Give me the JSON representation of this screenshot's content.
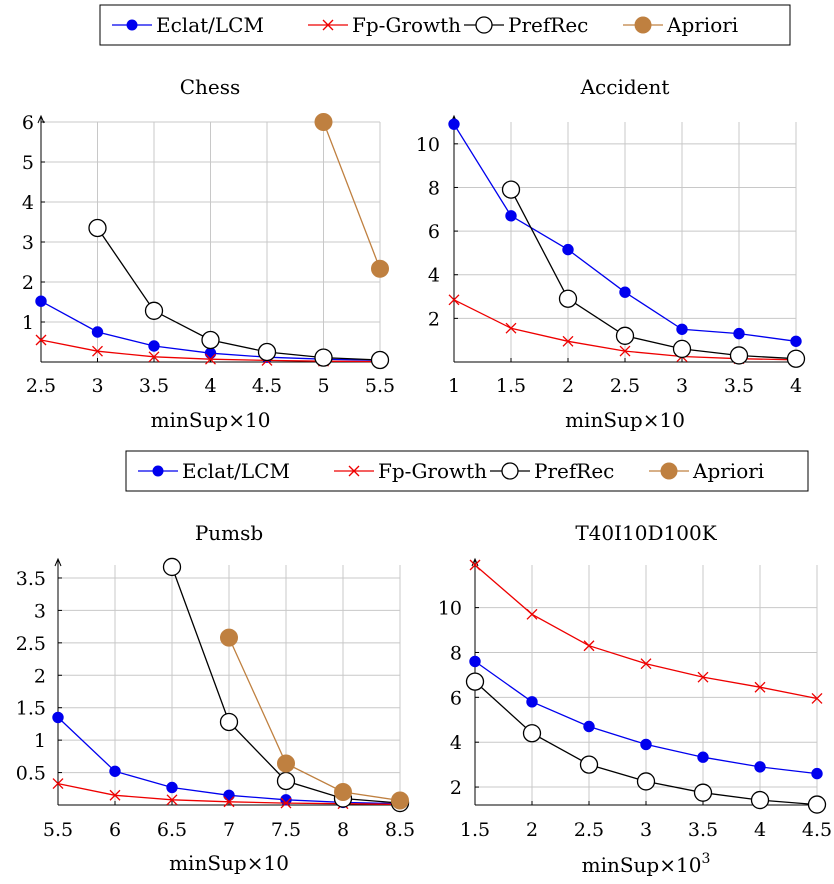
{
  "legend": {
    "entries": [
      {
        "name": "Eclat/LCM",
        "color": "#0000ee",
        "marker": "filled-circle"
      },
      {
        "name": "Fp-Growth",
        "color": "#ee0000",
        "marker": "cross"
      },
      {
        "name": "PrefRec",
        "color": "#000000",
        "marker": "open-circle"
      },
      {
        "name": "Apriori",
        "color": "#bf8040",
        "marker": "filled-circle"
      }
    ]
  },
  "chart_data": [
    {
      "type": "line",
      "title": "Chess",
      "xlabel": "minSup×10",
      "ylabel": "",
      "xlim": [
        2.5,
        5.5
      ],
      "ylim": [
        0,
        6
      ],
      "xticks": [
        "2.5",
        "3",
        "3.5",
        "4",
        "4.5",
        "5",
        "5.5"
      ],
      "yticks": [
        "1",
        "2",
        "3",
        "4",
        "5",
        "6"
      ],
      "grid": true,
      "series": [
        {
          "name": "Eclat/LCM",
          "x": [
            2.5,
            3,
            3.5,
            4,
            4.5,
            5,
            5.5
          ],
          "y": [
            1.52,
            0.75,
            0.4,
            0.22,
            0.12,
            0.07,
            0.04
          ]
        },
        {
          "name": "Fp-Growth",
          "x": [
            2.5,
            3,
            3.5,
            4,
            4.5,
            5,
            5.5
          ],
          "y": [
            0.55,
            0.27,
            0.13,
            0.07,
            0.04,
            0.02,
            0.01
          ]
        },
        {
          "name": "PrefRec",
          "x": [
            3,
            3.5,
            4,
            4.5,
            5,
            5.5
          ],
          "y": [
            3.35,
            1.28,
            0.55,
            0.25,
            0.11,
            0.05
          ]
        },
        {
          "name": "Apriori",
          "x": [
            5,
            5.5
          ],
          "y": [
            6.0,
            2.33
          ]
        }
      ]
    },
    {
      "type": "line",
      "title": "Accident",
      "xlabel": "minSup×10",
      "ylabel": "",
      "xlim": [
        1,
        4
      ],
      "ylim": [
        0,
        11
      ],
      "xticks": [
        "1",
        "1.5",
        "2",
        "2.5",
        "3",
        "3.5",
        "4"
      ],
      "yticks": [
        "2",
        "4",
        "6",
        "8",
        "10"
      ],
      "grid": true,
      "series": [
        {
          "name": "Eclat/LCM",
          "x": [
            1,
            1.5,
            2,
            2.5,
            3,
            3.5,
            4
          ],
          "y": [
            10.9,
            6.7,
            5.15,
            3.2,
            1.5,
            1.3,
            0.95
          ]
        },
        {
          "name": "Fp-Growth",
          "x": [
            1,
            1.5,
            2,
            2.5,
            3,
            3.5,
            4
          ],
          "y": [
            2.85,
            1.55,
            0.95,
            0.5,
            0.25,
            0.15,
            0.1
          ]
        },
        {
          "name": "PrefRec",
          "x": [
            1.5,
            2,
            2.5,
            3,
            3.5,
            4
          ],
          "y": [
            7.9,
            2.9,
            1.2,
            0.6,
            0.3,
            0.15
          ]
        }
      ]
    },
    {
      "type": "line",
      "title": "Pumsb",
      "xlabel": "minSup×10",
      "ylabel": "",
      "xlim": [
        5.5,
        8.5
      ],
      "ylim": [
        0,
        3.7
      ],
      "xticks": [
        "5.5",
        "6",
        "6.5",
        "7",
        "7.5",
        "8",
        "8.5"
      ],
      "yticks": [
        "0.5",
        "1",
        "1.5",
        "2",
        "2.5",
        "3",
        "3.5"
      ],
      "grid": true,
      "series": [
        {
          "name": "Eclat/LCM",
          "x": [
            5.5,
            6,
            6.5,
            7,
            7.5,
            8,
            8.5
          ],
          "y": [
            1.35,
            0.52,
            0.27,
            0.15,
            0.08,
            0.04,
            0.02
          ]
        },
        {
          "name": "Fp-Growth",
          "x": [
            5.5,
            6,
            6.5,
            7,
            7.5,
            8,
            8.5
          ],
          "y": [
            0.33,
            0.15,
            0.08,
            0.05,
            0.03,
            0.02,
            0.01
          ]
        },
        {
          "name": "PrefRec",
          "x": [
            6.5,
            7,
            7.5,
            8,
            8.5
          ],
          "y": [
            3.67,
            1.28,
            0.37,
            0.1,
            0.03
          ]
        },
        {
          "name": "Apriori",
          "x": [
            7,
            7.5,
            8,
            8.5
          ],
          "y": [
            2.58,
            0.64,
            0.2,
            0.07
          ]
        }
      ]
    },
    {
      "type": "line",
      "title": "T40I10D100K",
      "xlabel": "minSup×10",
      "xlabel_sup": "3",
      "ylabel": "",
      "xlim": [
        1.5,
        4.5
      ],
      "ylim": [
        1.2,
        11.9
      ],
      "xticks": [
        "1.5",
        "2",
        "2.5",
        "3",
        "3.5",
        "4",
        "4.5"
      ],
      "yticks": [
        "2",
        "4",
        "6",
        "8",
        "10"
      ],
      "grid": true,
      "series": [
        {
          "name": "Eclat/LCM",
          "x": [
            1.5,
            2,
            2.5,
            3,
            3.5,
            4,
            4.5
          ],
          "y": [
            7.6,
            5.8,
            4.7,
            3.9,
            3.33,
            2.9,
            2.6
          ]
        },
        {
          "name": "Fp-Growth",
          "x": [
            1.5,
            2,
            2.5,
            3,
            3.5,
            4,
            4.5
          ],
          "y": [
            11.9,
            9.7,
            8.3,
            7.5,
            6.9,
            6.45,
            5.95
          ]
        },
        {
          "name": "PrefRec",
          "x": [
            1.5,
            2,
            2.5,
            3,
            3.5,
            4,
            4.5
          ],
          "y": [
            6.7,
            4.4,
            3.0,
            2.25,
            1.75,
            1.42,
            1.22
          ]
        }
      ]
    }
  ]
}
